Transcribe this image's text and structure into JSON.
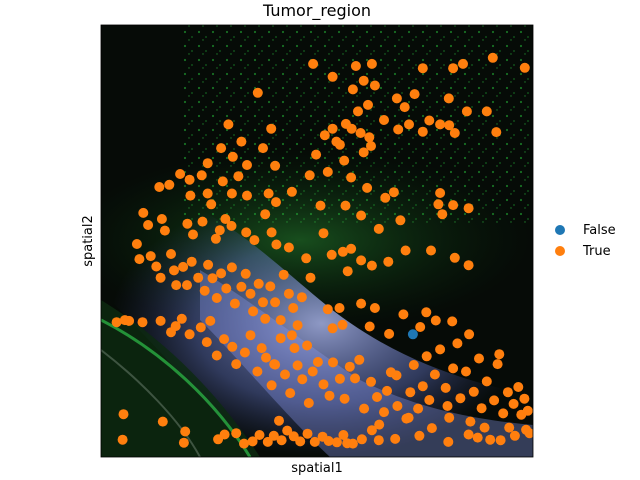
{
  "chart_data": {
    "type": "scatter",
    "title": "Tumor_region",
    "xlabel": "spatial1",
    "ylabel": "spatial2",
    "grid": false,
    "ticks": false,
    "legend": {
      "placement": "right",
      "entries": [
        {
          "name": "False",
          "color": "#1f77b4"
        },
        {
          "name": "True",
          "color": "#ff7f0e"
        }
      ]
    },
    "background": "fluorescence tissue image (dark with green and blue-purple stained regions)",
    "xlim": [
      0,
      100
    ],
    "ylim": [
      0,
      100
    ],
    "series": [
      {
        "name": "False",
        "color": "#1f77b4",
        "points": [
          [
            72.2,
            28.4
          ]
        ]
      },
      {
        "name": "True",
        "color": "#ff7f0e",
        "points": [
          [
            49.1,
            91
          ],
          [
            59,
            90.5
          ],
          [
            62.7,
            91
          ],
          [
            74.5,
            90
          ],
          [
            83.8,
            91
          ],
          [
            90.7,
            92.4
          ],
          [
            98.1,
            90.1
          ],
          [
            81.5,
            90
          ],
          [
            53.6,
            88
          ],
          [
            60.8,
            87.1
          ],
          [
            63.4,
            86
          ],
          [
            36.3,
            84.3
          ],
          [
            58.3,
            85.1
          ],
          [
            72.6,
            84
          ],
          [
            68.5,
            83
          ],
          [
            80.5,
            83
          ],
          [
            61.8,
            81.5
          ],
          [
            70.3,
            81
          ],
          [
            59.5,
            80
          ],
          [
            84.7,
            80
          ],
          [
            89.3,
            80
          ],
          [
            65.5,
            78
          ],
          [
            71.3,
            77
          ],
          [
            76,
            77.9
          ],
          [
            78.5,
            77
          ],
          [
            80.6,
            76.8
          ],
          [
            51.8,
            74.5
          ],
          [
            53.6,
            76
          ],
          [
            56.7,
            77.1
          ],
          [
            58,
            76
          ],
          [
            60.1,
            75
          ],
          [
            62.1,
            74
          ],
          [
            68.8,
            75.8
          ],
          [
            74.5,
            75.3
          ],
          [
            81.9,
            75
          ],
          [
            91.5,
            75.2
          ],
          [
            29.5,
            77
          ],
          [
            39.4,
            76
          ],
          [
            54.5,
            73
          ],
          [
            62.5,
            72
          ],
          [
            60.8,
            70.5
          ],
          [
            27.8,
            71.5
          ],
          [
            32.5,
            73
          ],
          [
            37.5,
            71.5
          ],
          [
            49.8,
            70
          ],
          [
            55.3,
            72.3
          ],
          [
            56.3,
            68.6
          ],
          [
            24.7,
            68
          ],
          [
            30.5,
            69.5
          ],
          [
            33.8,
            67.6
          ],
          [
            40.3,
            67.4
          ],
          [
            52.5,
            66
          ],
          [
            57.9,
            64.7
          ],
          [
            18.3,
            65.5
          ],
          [
            20.5,
            64.2
          ],
          [
            23.3,
            65.2
          ],
          [
            28.2,
            63.8
          ],
          [
            31.8,
            65
          ],
          [
            48.3,
            65.2
          ],
          [
            61.6,
            62.3
          ],
          [
            67.8,
            61.3
          ],
          [
            78.5,
            61.1
          ],
          [
            13.5,
            62.5
          ],
          [
            15.8,
            63
          ],
          [
            20.7,
            60.5
          ],
          [
            24.7,
            61
          ],
          [
            25.5,
            58.5
          ],
          [
            30.3,
            61
          ],
          [
            33.8,
            60.5
          ],
          [
            38.8,
            61
          ],
          [
            40.5,
            59
          ],
          [
            44.2,
            61.4
          ],
          [
            50.8,
            58.2
          ],
          [
            56.6,
            58.2
          ],
          [
            60.2,
            55.9
          ],
          [
            64.3,
            52.8
          ],
          [
            65.8,
            60
          ],
          [
            69.3,
            54.8
          ],
          [
            78.1,
            58.5
          ],
          [
            79,
            56.2
          ],
          [
            81.5,
            58.3
          ],
          [
            85.1,
            57.6
          ],
          [
            9.8,
            56.5
          ],
          [
            10.9,
            53.7
          ],
          [
            14.1,
            55.1
          ],
          [
            14.8,
            52.4
          ],
          [
            20,
            54
          ],
          [
            21.3,
            51.5
          ],
          [
            23.5,
            54.5
          ],
          [
            26.6,
            50.5
          ],
          [
            27.5,
            52.5
          ],
          [
            28.8,
            55.1
          ],
          [
            30.2,
            53.5
          ],
          [
            33.6,
            52
          ],
          [
            35.5,
            50.2
          ],
          [
            38,
            56.2
          ],
          [
            39.5,
            52
          ],
          [
            40.6,
            49.2
          ],
          [
            43.5,
            48.5
          ],
          [
            47.5,
            46
          ],
          [
            51.5,
            51.8
          ],
          [
            53.4,
            46.8
          ],
          [
            56,
            47.5
          ],
          [
            57.1,
            43
          ],
          [
            57.9,
            48.2
          ],
          [
            60.2,
            45.5
          ],
          [
            62.7,
            44.3
          ],
          [
            66.5,
            45.2
          ],
          [
            70.5,
            47.8
          ],
          [
            76.4,
            47.8
          ],
          [
            81.9,
            46.1
          ],
          [
            85.1,
            44.4
          ],
          [
            8.3,
            49.3
          ],
          [
            8.9,
            45.8
          ],
          [
            11.5,
            46.5
          ],
          [
            12.8,
            44.1
          ],
          [
            13.8,
            41.5
          ],
          [
            16.2,
            47
          ],
          [
            16.9,
            43.2
          ],
          [
            17.4,
            39.8
          ],
          [
            19,
            44
          ],
          [
            19.9,
            39.8
          ],
          [
            21,
            45.2
          ],
          [
            22.5,
            41.5
          ],
          [
            24,
            38.5
          ],
          [
            24.8,
            44.5
          ],
          [
            25.8,
            41.4
          ],
          [
            26.8,
            36.8
          ],
          [
            27.8,
            42.5
          ],
          [
            29,
            39
          ],
          [
            30.3,
            43.9
          ],
          [
            31,
            35.5
          ],
          [
            32.5,
            39.4
          ],
          [
            33.5,
            42.4
          ],
          [
            34.6,
            37.8
          ],
          [
            35.2,
            33.7
          ],
          [
            36.5,
            40.1
          ],
          [
            37.5,
            35.8
          ],
          [
            38,
            32
          ],
          [
            39.2,
            39.5
          ],
          [
            40.3,
            35.8
          ],
          [
            41.6,
            31.7
          ],
          [
            42.3,
            42.2
          ],
          [
            43.5,
            37.8
          ],
          [
            44.5,
            34.5
          ],
          [
            45.5,
            30.5
          ],
          [
            46.5,
            37
          ],
          [
            48.5,
            41.5
          ],
          [
            52.5,
            34.2
          ],
          [
            53.6,
            29.8
          ],
          [
            55.2,
            34.5
          ],
          [
            55.9,
            30.6
          ],
          [
            60.2,
            35.5
          ],
          [
            62.2,
            30.2
          ],
          [
            63.4,
            34.5
          ],
          [
            66.7,
            28.5
          ],
          [
            70,
            33
          ],
          [
            75.3,
            33.5
          ],
          [
            73.9,
            30.1
          ],
          [
            77.5,
            31.6
          ],
          [
            81.3,
            31.4
          ],
          [
            85.2,
            28.4
          ],
          [
            3.6,
            31.2
          ],
          [
            5.5,
            31.7
          ],
          [
            6.5,
            31.5
          ],
          [
            9.6,
            31.2
          ],
          [
            13.8,
            31.5
          ],
          [
            16.2,
            28.9
          ],
          [
            17.3,
            30.3
          ],
          [
            18.7,
            32
          ],
          [
            20.5,
            28.4
          ],
          [
            23.1,
            30
          ],
          [
            24.5,
            26.6
          ],
          [
            25.3,
            31.5
          ],
          [
            26.8,
            23.5
          ],
          [
            28.5,
            27.3
          ],
          [
            30.4,
            25.5
          ],
          [
            31.3,
            21.5
          ],
          [
            33.3,
            24.2
          ],
          [
            34.6,
            28.2
          ],
          [
            36.2,
            19.8
          ],
          [
            37.2,
            25.2
          ],
          [
            38.2,
            23
          ],
          [
            39.5,
            16.6
          ],
          [
            40.3,
            21.4
          ],
          [
            41.6,
            27.5
          ],
          [
            42.6,
            19.1
          ],
          [
            43.8,
            14.8
          ],
          [
            44.8,
            25.2
          ],
          [
            45.5,
            21.2
          ],
          [
            46.6,
            18
          ],
          [
            47.7,
            25.8
          ],
          [
            48.1,
            12.5
          ],
          [
            49,
            19.8
          ],
          [
            50.2,
            22
          ],
          [
            51.5,
            16.8
          ],
          [
            52.9,
            14.2
          ],
          [
            53.7,
            21.9
          ],
          [
            55.3,
            18.1
          ],
          [
            56.4,
            13.5
          ],
          [
            57.6,
            20.9
          ],
          [
            58.8,
            18.2
          ],
          [
            59.8,
            22.5
          ],
          [
            60.9,
            11.2
          ],
          [
            62.5,
            17.4
          ],
          [
            63.9,
            13.9
          ],
          [
            65.5,
            10.4
          ],
          [
            66.2,
            15.3
          ],
          [
            67.1,
            19.6
          ],
          [
            68.6,
            11.8
          ],
          [
            70.7,
            8.9
          ],
          [
            71.6,
            15
          ],
          [
            72.4,
            21.3
          ],
          [
            73.4,
            11.2
          ],
          [
            74.5,
            16.4
          ],
          [
            75.4,
            23.3
          ],
          [
            76,
            13.2
          ],
          [
            77.3,
            19.1
          ],
          [
            78.5,
            24.9
          ],
          [
            79.8,
            16
          ],
          [
            80.6,
            9.1
          ],
          [
            81.5,
            20.5
          ],
          [
            82.5,
            26.3
          ],
          [
            83.2,
            13.6
          ],
          [
            84.5,
            19.8
          ],
          [
            85.5,
            8.2
          ],
          [
            86.3,
            15.1
          ],
          [
            87.5,
            22.8
          ],
          [
            88.1,
            11.3
          ],
          [
            89.3,
            17.5
          ],
          [
            90.1,
            4
          ],
          [
            91,
            13.1
          ],
          [
            91.8,
            21.5
          ],
          [
            93.1,
            10.1
          ],
          [
            94.2,
            15
          ],
          [
            94.5,
            6.8
          ],
          [
            95.5,
            12.3
          ],
          [
            96.6,
            16.2
          ],
          [
            97.3,
            9.8
          ],
          [
            98,
            13.5
          ],
          [
            98.4,
            6.3
          ],
          [
            98.8,
            10.7
          ],
          [
            99.2,
            5.5
          ],
          [
            95.8,
            4.9
          ],
          [
            92.5,
            3.9
          ],
          [
            87.2,
            4.5
          ],
          [
            85.1,
            5.2
          ],
          [
            80.4,
            3.5
          ],
          [
            73.7,
            4.9
          ],
          [
            68.1,
            4.2
          ],
          [
            64.3,
            3.9
          ],
          [
            62.7,
            6.2
          ],
          [
            60.4,
            4.1
          ],
          [
            58.3,
            3.1
          ],
          [
            57,
            3.2
          ],
          [
            56.1,
            5.1
          ],
          [
            54.6,
            3.4
          ],
          [
            52.7,
            3.7
          ],
          [
            51.3,
            4.7
          ],
          [
            49.5,
            3.5
          ],
          [
            47.8,
            5.4
          ],
          [
            46.1,
            3.6
          ],
          [
            44.6,
            4.8
          ],
          [
            43.1,
            6.1
          ],
          [
            41.8,
            3.9
          ],
          [
            40,
            4.9
          ],
          [
            38.6,
            3.5
          ],
          [
            36.7,
            5.1
          ],
          [
            35.1,
            3.6
          ],
          [
            33.1,
            3.1
          ],
          [
            31.3,
            5.5
          ],
          [
            28.6,
            5.2
          ],
          [
            27.1,
            4.1
          ],
          [
            19.5,
            5.9
          ],
          [
            19.2,
            3.3
          ],
          [
            14.3,
            8.2
          ],
          [
            5,
            4
          ],
          [
            5.2,
            9.9
          ],
          [
            41.2,
            8.4
          ],
          [
            64.4,
            7.5
          ],
          [
            40.1,
            21.5
          ],
          [
            44.2,
            28.2
          ],
          [
            68.4,
            18.9
          ],
          [
            71.2,
            9.1
          ],
          [
            76.6,
            6.7
          ],
          [
            80.2,
            11.8
          ],
          [
            88.8,
            6.8
          ],
          [
            92.2,
            23.8
          ]
        ]
      }
    ]
  }
}
